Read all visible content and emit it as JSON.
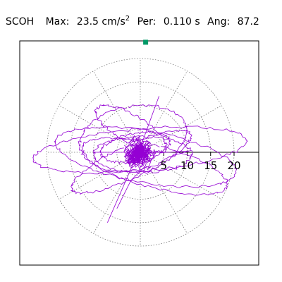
{
  "header": {
    "station": "SCOH",
    "max_label": "Max:",
    "max_value": "23.5",
    "max_unit": "cm/s",
    "max_unit_exp": "2",
    "per_label": "Per:",
    "per_value": "0.110 s",
    "ang_label": "Ang:",
    "ang_value": "87.2"
  },
  "chart_data": {
    "type": "polar-hodogram",
    "radial_ticks": [
      5,
      10,
      15,
      20
    ],
    "rings": [
      5,
      10,
      15,
      20
    ],
    "angular_grid_deg": 30,
    "grid": true,
    "trace_color": "#9400D3",
    "marker_color": "#009966",
    "max_point": {
      "value": 23.5,
      "angle_deg": 87.2
    }
  }
}
